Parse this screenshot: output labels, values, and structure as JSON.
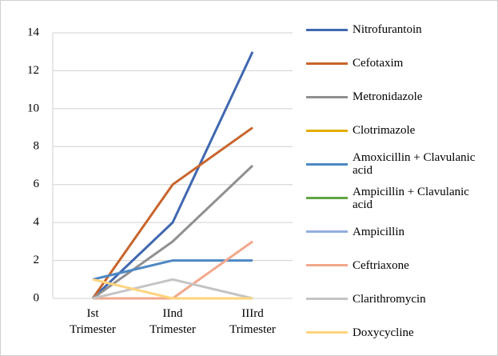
{
  "chart_data": {
    "type": "line",
    "categories": [
      "Ist Trimester",
      "IInd Trimester",
      "IIIrd Trimester"
    ],
    "series": [
      {
        "name": "Nitrofurantoin",
        "color": "#4168b0",
        "values": [
          0,
          4,
          13
        ]
      },
      {
        "name": "Cefotaxim",
        "color": "#c8652c",
        "values": [
          0,
          6,
          9
        ]
      },
      {
        "name": "Metronidazole",
        "color": "#909090",
        "values": [
          0,
          3,
          7
        ]
      },
      {
        "name": "Clotrimazole",
        "color": "#e6ac00",
        "values": [
          0,
          0,
          0
        ]
      },
      {
        "name": "Amoxicillin + Clavulanic acid",
        "color": "#4d88c4",
        "values": [
          1,
          2,
          2
        ]
      },
      {
        "name": "Ampicillin + Clavulanic acid",
        "color": "#62a443",
        "values": [
          0,
          0,
          0
        ]
      },
      {
        "name": "Ampicillin",
        "color": "#93aee0",
        "values": [
          0,
          0,
          0
        ]
      },
      {
        "name": "Ceftriaxone",
        "color": "#f2a88c",
        "values": [
          0,
          0,
          3
        ]
      },
      {
        "name": "Clarithromycin",
        "color": "#c4c4c4",
        "values": [
          0,
          1,
          0
        ]
      },
      {
        "name": "Doxycycline",
        "color": "#ffd47e",
        "values": [
          1,
          0,
          0
        ]
      }
    ],
    "ylim": [
      0,
      14
    ],
    "yticks": [
      0,
      2,
      4,
      6,
      8,
      10,
      12,
      14
    ],
    "grid": true,
    "legend": "right"
  }
}
